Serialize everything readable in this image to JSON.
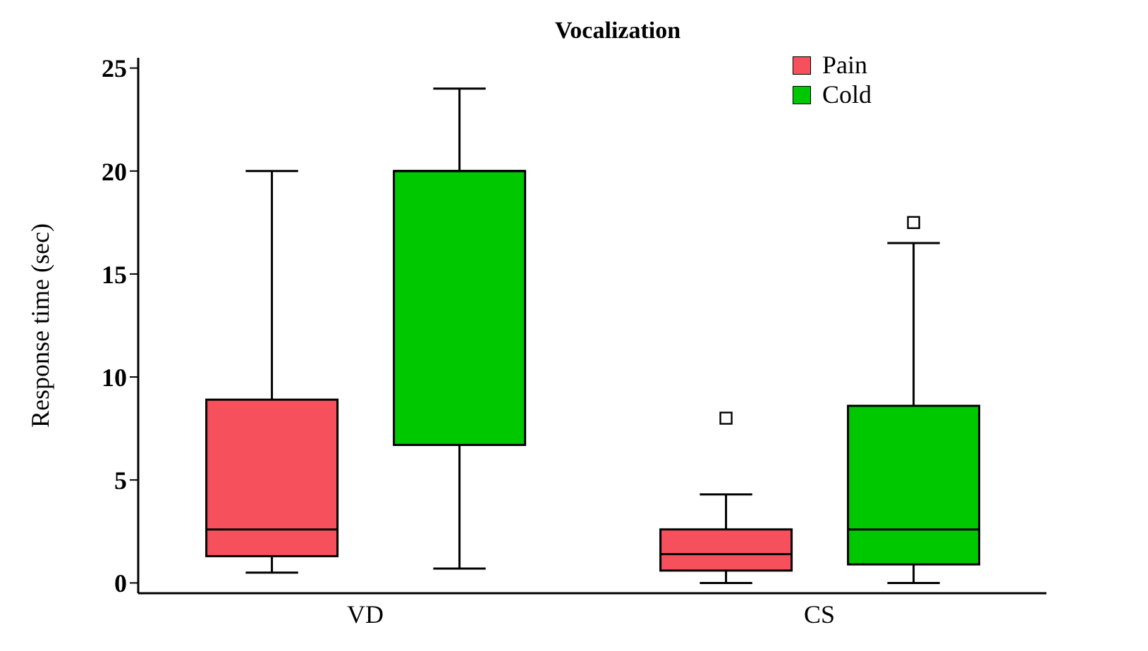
{
  "chart_data": {
    "type": "box",
    "title": "Vocalization",
    "ylabel": "Response time (sec)",
    "categories": [
      "VD",
      "CS"
    ],
    "series": [
      {
        "name": "Pain",
        "color": "#f5505c",
        "boxes": [
          {
            "low": 0.5,
            "q1": 1.3,
            "median": 2.6,
            "q3": 8.9,
            "high": 20
          },
          {
            "low": 0,
            "q1": 0.6,
            "median": 1.4,
            "q3": 2.6,
            "high": 4.3,
            "outliers": [
              8
            ]
          }
        ]
      },
      {
        "name": "Cold",
        "color": "#00c800",
        "boxes": [
          {
            "low": 0.7,
            "q1": 6.7,
            "median": 20,
            "q3": 20,
            "high": 24
          },
          {
            "low": 0,
            "q1": 0.9,
            "median": 2.6,
            "q3": 8.6,
            "high": 16.5,
            "outliers": [
              17.5
            ]
          }
        ]
      }
    ],
    "ylim": [
      -0.5,
      25.5
    ],
    "yticks": [
      0,
      5,
      10,
      15,
      20,
      25
    ],
    "legend": "top right"
  }
}
